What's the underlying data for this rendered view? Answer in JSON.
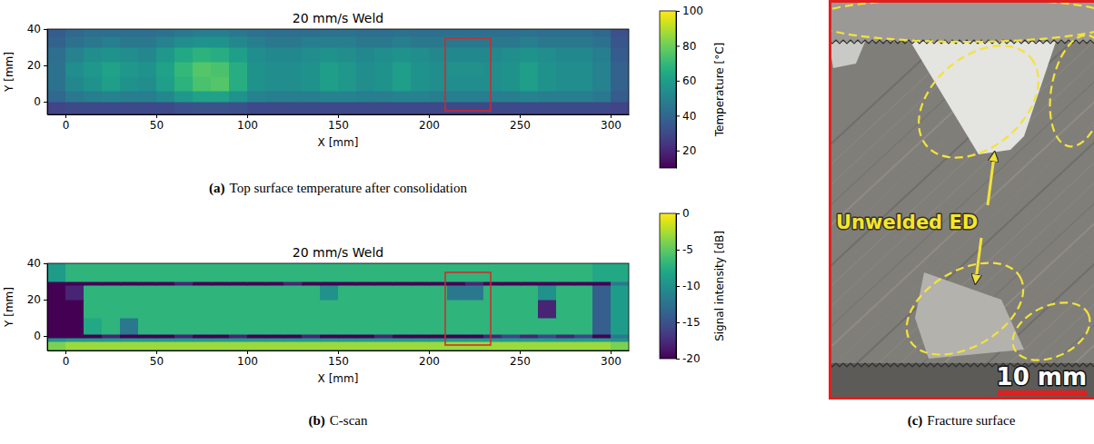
{
  "chart_data": [
    {
      "type": "heatmap",
      "title": "20 mm/s Weld",
      "caption": {
        "letter": "(a)",
        "text": "Top surface temperature after consolidation"
      },
      "x_label": "X [mm]",
      "y_label": "Y [mm]",
      "xlim": [
        -10,
        310
      ],
      "ylim": [
        -7,
        40
      ],
      "xticks": [
        0,
        50,
        100,
        150,
        200,
        250,
        300
      ],
      "yticks": [
        0,
        20,
        40
      ],
      "color": "viridis",
      "cells": {
        "x_edges": [
          -10,
          0,
          10,
          20,
          30,
          40,
          50,
          60,
          70,
          80,
          90,
          100,
          110,
          120,
          130,
          140,
          150,
          160,
          170,
          180,
          190,
          200,
          210,
          220,
          230,
          240,
          250,
          260,
          270,
          280,
          290,
          300,
          310
        ],
        "y_edges": [
          -7,
          0,
          6,
          14,
          22,
          30,
          36,
          40
        ],
        "values": [
          [
            28,
            30,
            30,
            30,
            30,
            30,
            30,
            32,
            33,
            33,
            32,
            30,
            30,
            30,
            30,
            30,
            30,
            30,
            30,
            30,
            30,
            30,
            30,
            30,
            30,
            30,
            30,
            30,
            30,
            30,
            30,
            28
          ],
          [
            40,
            46,
            48,
            50,
            48,
            48,
            52,
            58,
            62,
            62,
            56,
            50,
            48,
            48,
            48,
            50,
            50,
            48,
            48,
            50,
            50,
            48,
            48,
            48,
            48,
            48,
            50,
            48,
            48,
            48,
            46,
            36
          ],
          [
            44,
            52,
            56,
            60,
            56,
            54,
            60,
            68,
            74,
            76,
            66,
            56,
            54,
            54,
            56,
            60,
            58,
            54,
            56,
            60,
            56,
            54,
            54,
            54,
            54,
            56,
            60,
            56,
            54,
            54,
            50,
            38
          ],
          [
            44,
            54,
            58,
            62,
            58,
            56,
            62,
            70,
            76,
            74,
            66,
            56,
            54,
            54,
            56,
            60,
            58,
            54,
            56,
            60,
            56,
            54,
            55,
            55,
            54,
            56,
            60,
            56,
            54,
            54,
            50,
            38
          ],
          [
            42,
            50,
            54,
            56,
            54,
            52,
            58,
            64,
            68,
            66,
            60,
            54,
            52,
            52,
            54,
            56,
            54,
            52,
            54,
            56,
            54,
            52,
            52,
            52,
            52,
            54,
            56,
            54,
            52,
            52,
            48,
            36
          ],
          [
            38,
            44,
            46,
            48,
            46,
            46,
            50,
            54,
            56,
            56,
            52,
            48,
            46,
            46,
            48,
            48,
            48,
            46,
            46,
            48,
            46,
            46,
            46,
            46,
            46,
            46,
            48,
            46,
            46,
            46,
            44,
            34
          ],
          [
            36,
            40,
            42,
            42,
            42,
            42,
            44,
            46,
            48,
            48,
            46,
            44,
            42,
            42,
            42,
            44,
            44,
            42,
            42,
            44,
            42,
            42,
            42,
            42,
            42,
            42,
            44,
            42,
            42,
            42,
            40,
            32
          ]
        ]
      },
      "colorbar": {
        "label": "Temperature [°C]",
        "range": [
          10,
          100
        ],
        "ticks": [
          20,
          40,
          60,
          80,
          100
        ]
      },
      "highlight": {
        "x": [
          209,
          234
        ],
        "y": [
          -5,
          35
        ],
        "color": "#d62728"
      }
    },
    {
      "type": "heatmap",
      "title": "20 mm/s Weld",
      "caption": {
        "letter": "(b)",
        "text": "C-scan"
      },
      "x_label": "X [mm]",
      "y_label": "Y [mm]",
      "xlim": [
        -10,
        310
      ],
      "ylim": [
        -8,
        40
      ],
      "xticks": [
        0,
        50,
        100,
        150,
        200,
        250,
        300
      ],
      "yticks": [
        0,
        20,
        40
      ],
      "color": "viridis",
      "cells": {
        "x_edges": [
          -10,
          0,
          10,
          20,
          30,
          40,
          50,
          60,
          70,
          80,
          90,
          100,
          110,
          120,
          130,
          140,
          150,
          160,
          170,
          180,
          190,
          200,
          210,
          220,
          230,
          240,
          250,
          260,
          270,
          280,
          290,
          300,
          310
        ],
        "y_edges": [
          -8,
          -3,
          -1,
          1,
          10,
          20,
          28,
          30,
          40
        ],
        "values": [
          [
            -4,
            -3,
            -3,
            -3,
            -3,
            -3,
            -3,
            -3,
            -3,
            -3,
            -3,
            -3,
            -3,
            -3,
            -3,
            -3,
            -3,
            -3,
            -3,
            -3,
            -3,
            -3,
            -3,
            -3,
            -3,
            -3,
            -3,
            -3,
            -3,
            -3,
            -3,
            -4
          ],
          [
            -10,
            -9,
            -9,
            -9,
            -9,
            -9,
            -9,
            -9,
            -9,
            -9,
            -9,
            -9,
            -9,
            -9,
            -9,
            -9,
            -9,
            -9,
            -9,
            -9,
            -9,
            -9,
            -9,
            -9,
            -9,
            -9,
            -9,
            -9,
            -9,
            -9,
            -9,
            -10
          ],
          [
            -20,
            -20,
            -20,
            -18,
            -20,
            -20,
            -20,
            -18,
            -20,
            -20,
            -18,
            -20,
            -20,
            -20,
            -18,
            -20,
            -20,
            -20,
            -18,
            -20,
            -20,
            -20,
            -20,
            -20,
            -18,
            -16,
            -18,
            -16,
            -18,
            -16,
            -20,
            -12
          ],
          [
            -20,
            -20,
            -8,
            -7,
            -12,
            -7,
            -7,
            -7,
            -7,
            -7,
            -7,
            -7,
            -7,
            -7,
            -7,
            -7,
            -7,
            -7,
            -7,
            -7,
            -7,
            -7,
            -7,
            -7,
            -7,
            -7,
            -7,
            -7,
            -7,
            -7,
            -14,
            -9
          ],
          [
            -20,
            -20,
            -7,
            -7,
            -7,
            -7,
            -7,
            -7,
            -7,
            -7,
            -7,
            -7,
            -7,
            -7,
            -7,
            -7,
            -7,
            -7,
            -7,
            -7,
            -7,
            -7,
            -7,
            -7,
            -7,
            -7,
            -7,
            -18,
            -7,
            -7,
            -14,
            -9
          ],
          [
            -20,
            -18,
            -7,
            -7,
            -7,
            -7,
            -7,
            -7,
            -7,
            -7,
            -7,
            -7,
            -7,
            -7,
            -7,
            -10,
            -7,
            -7,
            -7,
            -7,
            -7,
            -7,
            -12,
            -12,
            -7,
            -7,
            -7,
            -10,
            -7,
            -7,
            -14,
            -9
          ],
          [
            -20,
            -20,
            -20,
            -20,
            -20,
            -20,
            -20,
            -18,
            -20,
            -20,
            -20,
            -20,
            -20,
            -18,
            -20,
            -20,
            -20,
            -20,
            -20,
            -20,
            -20,
            -20,
            -20,
            -18,
            -20,
            -20,
            -20,
            -20,
            -20,
            -20,
            -20,
            -12
          ],
          [
            -9,
            -7,
            -7,
            -7,
            -7,
            -7,
            -7,
            -7,
            -7,
            -7,
            -7,
            -7,
            -7,
            -7,
            -7,
            -7,
            -7,
            -7,
            -7,
            -7,
            -7,
            -7,
            -7,
            -7,
            -7,
            -7,
            -7,
            -7,
            -7,
            -7,
            -8,
            -8
          ]
        ]
      },
      "colorbar": {
        "label": "Signal intensity [dB]",
        "range": [
          -20,
          0
        ],
        "ticks": [
          0,
          -5,
          -10,
          -15,
          -20
        ]
      },
      "highlight": {
        "x": [
          209,
          234
        ],
        "y": [
          -5,
          35
        ],
        "color": "#d62728"
      }
    }
  ],
  "photo": {
    "caption": {
      "letter": "(c)",
      "text": "Fracture surface"
    },
    "annotation": "Unwelded ED",
    "scale_bar": "10 mm"
  }
}
